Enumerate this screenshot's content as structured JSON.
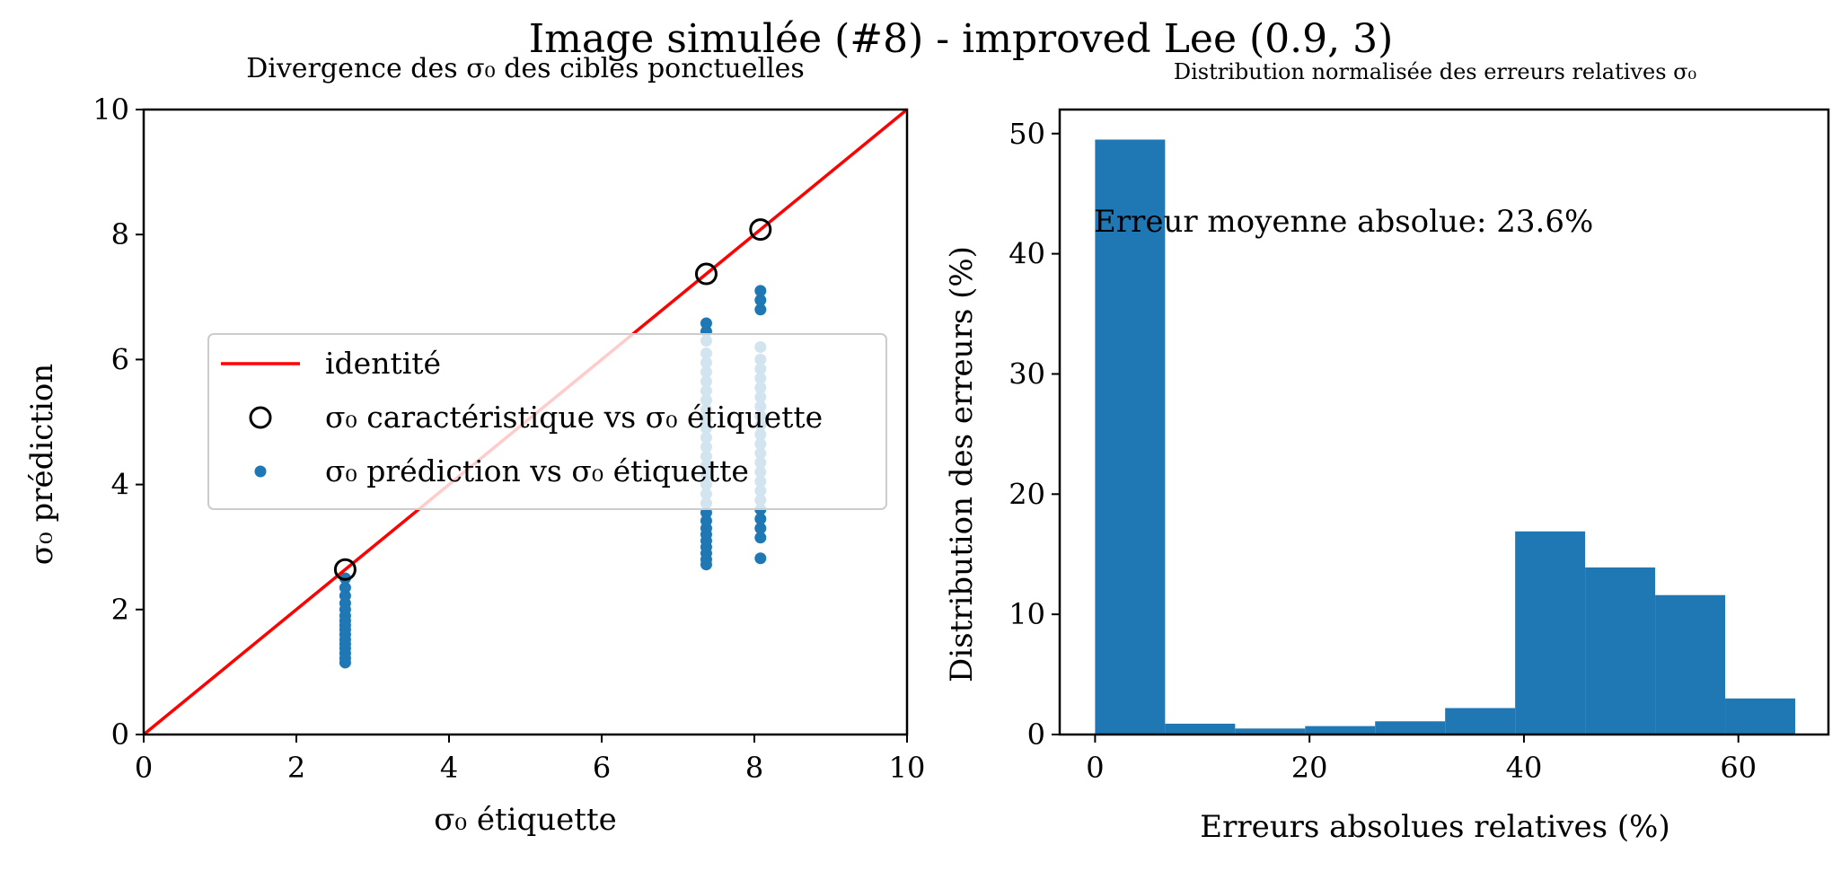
{
  "figure": {
    "suptitle": "Image simulée (#8) - improved Lee (0.9, 3)"
  },
  "colors": {
    "identity_line": "#ff0000",
    "points": "#1f77b4",
    "bars": "#1f77b4",
    "circles": "#000000"
  },
  "chart_data": [
    {
      "type": "scatter",
      "title": "Divergence des σ₀ des cibles ponctuelles",
      "xlabel": "σ₀ étiquette",
      "ylabel": "σ₀ prédiction",
      "xlim": [
        0,
        10
      ],
      "ylim": [
        0,
        10
      ],
      "xticks": [
        "0",
        "2",
        "4",
        "6",
        "8",
        "10"
      ],
      "yticks": [
        "0",
        "2",
        "4",
        "6",
        "8",
        "10"
      ],
      "legend_position": "center",
      "legend": [
        {
          "label": "identité",
          "marker": "line"
        },
        {
          "label": "σ₀ caractéristique vs σ₀ étiquette",
          "marker": "open-circle"
        },
        {
          "label": "σ₀ prédiction vs σ₀ étiquette",
          "marker": "dot"
        }
      ],
      "series": [
        {
          "name": "identité",
          "kind": "line",
          "x": [
            0,
            10
          ],
          "y": [
            0,
            10
          ]
        },
        {
          "name": "σ₀ caractéristique vs σ₀ étiquette",
          "kind": "open-circle",
          "x": [
            2.64,
            7.37,
            8.08
          ],
          "y": [
            2.64,
            7.37,
            8.08
          ]
        },
        {
          "name": "σ₀ prédiction vs σ₀ étiquette",
          "kind": "dot",
          "groups": [
            {
              "x": 2.64,
              "y": [
                1.15,
                1.22,
                1.3,
                1.38,
                1.45,
                1.52,
                1.6,
                1.68,
                1.75,
                1.82,
                1.9,
                2.0,
                2.1,
                2.22,
                2.35,
                2.5
              ]
            },
            {
              "x": 7.37,
              "y": [
                2.72,
                2.8,
                2.9,
                3.0,
                3.1,
                3.2,
                3.3,
                3.42,
                3.55,
                3.7,
                3.85,
                4.0,
                4.15,
                4.3,
                4.45,
                4.6,
                4.75,
                4.9,
                5.05,
                5.2,
                5.35,
                5.5,
                5.65,
                5.8,
                5.95,
                6.1,
                6.3,
                6.45,
                6.58
              ]
            },
            {
              "x": 8.08,
              "y": [
                2.82,
                3.15,
                3.3,
                3.45,
                3.6,
                3.75,
                3.9,
                4.05,
                4.2,
                4.35,
                4.5,
                4.65,
                4.8,
                4.95,
                5.1,
                5.25,
                5.4,
                5.55,
                5.7,
                5.85,
                6.0,
                6.2,
                6.8,
                6.95,
                7.1
              ]
            }
          ]
        }
      ]
    },
    {
      "type": "bar",
      "title": "Distribution normalisée des erreurs relatives σ₀",
      "xlabel": "Erreurs absolues relatives (%)",
      "ylabel": "Distribution des erreurs (%)",
      "xlim": [
        -3.3,
        68.4
      ],
      "ylim": [
        0,
        52
      ],
      "xticks": [
        "0",
        "20",
        "40",
        "60"
      ],
      "yticks": [
        "0",
        "10",
        "20",
        "30",
        "40",
        "50"
      ],
      "annotation": "Erreur moyenne absolue: 23.6%",
      "bins": [
        {
          "x0": 0.0,
          "x1": 6.53,
          "value": 49.5
        },
        {
          "x0": 6.53,
          "x1": 13.06,
          "value": 0.9
        },
        {
          "x0": 13.06,
          "x1": 19.59,
          "value": 0.5
        },
        {
          "x0": 19.59,
          "x1": 26.12,
          "value": 0.7
        },
        {
          "x0": 26.12,
          "x1": 32.65,
          "value": 1.1
        },
        {
          "x0": 32.65,
          "x1": 39.18,
          "value": 2.2
        },
        {
          "x0": 39.18,
          "x1": 45.71,
          "value": 16.9
        },
        {
          "x0": 45.71,
          "x1": 52.24,
          "value": 13.9
        },
        {
          "x0": 52.24,
          "x1": 58.77,
          "value": 11.6
        },
        {
          "x0": 58.77,
          "x1": 65.3,
          "value": 3.0
        }
      ]
    }
  ]
}
